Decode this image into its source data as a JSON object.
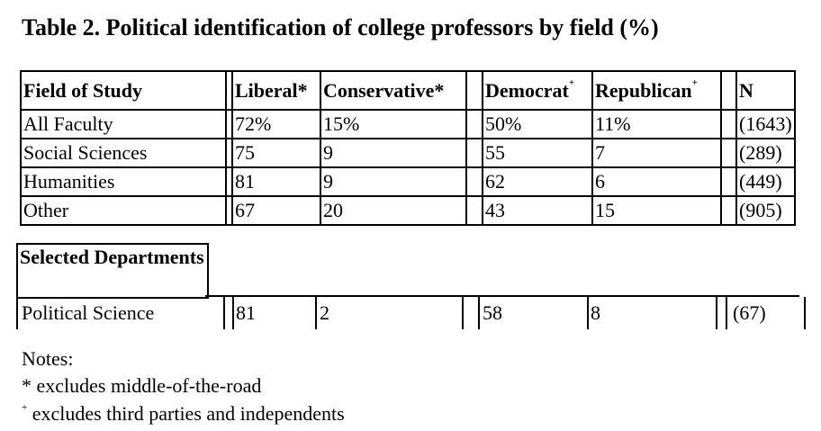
{
  "title": "Table 2. Political identification of college professors by field (%)",
  "table": {
    "header": [
      {
        "text": "Field of Study"
      },
      {
        "text": "Liberal*"
      },
      {
        "text": "Conservative*"
      },
      {
        "text": "Democrat",
        "sup": "+"
      },
      {
        "text": "Republican",
        "sup": "+"
      },
      {
        "text": "N"
      }
    ],
    "rows": [
      [
        "All Faculty",
        "72%",
        "15%",
        "50%",
        "11%",
        "(1643)"
      ],
      [
        "Social Sciences",
        "75",
        "9",
        "55",
        "7",
        "(289)"
      ],
      [
        "Humanities",
        "81",
        "9",
        "62",
        "6",
        "(449)"
      ],
      [
        "Other",
        "67",
        "20",
        "43",
        "15",
        "(905)"
      ]
    ],
    "section": "Selected Departments",
    "department_rows": [
      [
        "Political Science",
        "81",
        "2",
        "58",
        "8",
        "(67)"
      ]
    ]
  },
  "notes": {
    "heading": "Notes:",
    "items": [
      {
        "mark": "*",
        "text": "excludes middle-of-the-road"
      },
      {
        "mark": "+",
        "text": "excludes third parties and independents"
      }
    ]
  }
}
